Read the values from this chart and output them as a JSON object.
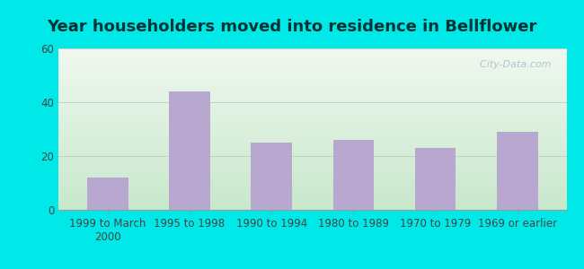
{
  "title": "Year householders moved into residence in Bellflower",
  "categories": [
    "1999 to March\n2000",
    "1995 to 1998",
    "1990 to 1994",
    "1980 to 1989",
    "1970 to 1979",
    "1969 or earlier"
  ],
  "values": [
    12,
    44,
    25,
    26,
    23,
    29
  ],
  "bar_color": "#b8a8d0",
  "background_outer": "#00e8e8",
  "gradient_top_right": "#f0f8f0",
  "gradient_bottom_left": "#c8e8cc",
  "ylim": [
    0,
    60
  ],
  "yticks": [
    0,
    20,
    40,
    60
  ],
  "title_fontsize": 13,
  "tick_fontsize": 8.5,
  "watermark": "  City-Data.com",
  "watermark_color": "#aabbcc",
  "title_color": "#003333"
}
